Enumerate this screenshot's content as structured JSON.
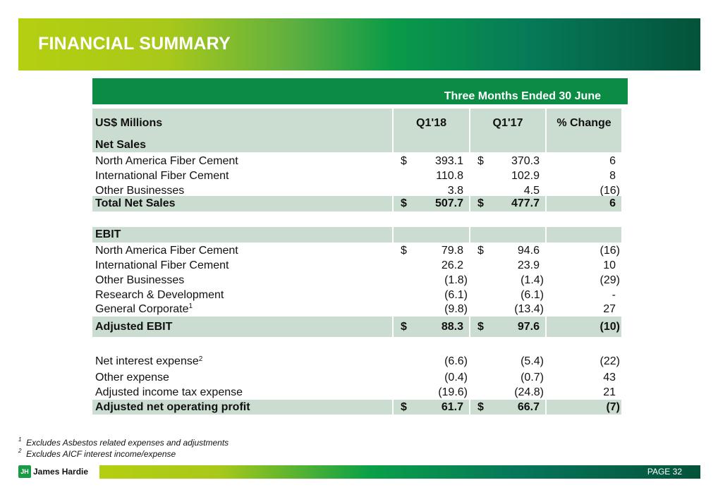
{
  "title": "FINANCIAL SUMMARY",
  "period_label": "Three Months Ended 30 June",
  "table": {
    "headers": [
      "US$ Millions",
      "Q1'18",
      "Q1'17",
      "% Change"
    ],
    "rows": [
      {
        "type": "section",
        "label": "Net Sales"
      },
      {
        "type": "item",
        "label": "North America Fiber Cement",
        "q118": "393.1",
        "q117": "370.3",
        "change": "6",
        "dollar": "$"
      },
      {
        "type": "item",
        "label": "International Fiber Cement",
        "q118": "110.8",
        "q117": "102.9",
        "change": "8"
      },
      {
        "type": "item",
        "label": "Other Businesses",
        "q118": "3.8",
        "q117": "4.5",
        "change": "(16)"
      },
      {
        "type": "total",
        "label": "Total Net Sales",
        "q118": "507.7",
        "q117": "477.7",
        "change": "6",
        "dollar": "$"
      },
      {
        "type": "section",
        "label": "EBIT"
      },
      {
        "type": "item",
        "label": "North America Fiber Cement",
        "q118": "79.8",
        "q117": "94.6",
        "change": "(16)",
        "dollar": "$"
      },
      {
        "type": "item",
        "label": "International Fiber Cement",
        "q118": "26.2",
        "q117": "23.9",
        "change": "10"
      },
      {
        "type": "item",
        "label": "Other Businesses",
        "q118": "(1.8)",
        "q117": "(1.4)",
        "change": "(29)"
      },
      {
        "type": "item",
        "label": "Research & Development",
        "q118": "(6.1)",
        "q117": "(6.1)",
        "change": "-"
      },
      {
        "type": "item",
        "label": "General Corporate",
        "sup": "1",
        "q118": "(9.8)",
        "q117": "(13.4)",
        "change": "27"
      },
      {
        "type": "total",
        "label": "Adjusted EBIT",
        "q118": "88.3",
        "q117": "97.6",
        "change": "(10)",
        "dollar": "$"
      },
      {
        "type": "item",
        "label": "Net interest expense",
        "sup": "2",
        "q118": "(6.6)",
        "q117": "(5.4)",
        "change": "(22)"
      },
      {
        "type": "item",
        "label": "Other expense",
        "q118": "(0.4)",
        "q117": "(0.7)",
        "change": "43"
      },
      {
        "type": "item",
        "label": "Adjusted income tax expense",
        "q118": "(19.6)",
        "q117": "(24.8)",
        "change": "21"
      },
      {
        "type": "total",
        "label": "Adjusted net operating profit",
        "q118": "61.7",
        "q117": "66.7",
        "change": "(7)",
        "dollar": "$"
      }
    ]
  },
  "footnotes": [
    {
      "mark": "1",
      "text": "Excludes Asbestos related expenses and adjustments"
    },
    {
      "mark": "2",
      "text": "Excludes AICF interest income/expense"
    }
  ],
  "footer": {
    "logo_text": "James Hardie",
    "page_label": "PAGE  32"
  },
  "colors": {
    "brand_green": "#0a8c44",
    "row_shade": "#cbdcd0"
  }
}
